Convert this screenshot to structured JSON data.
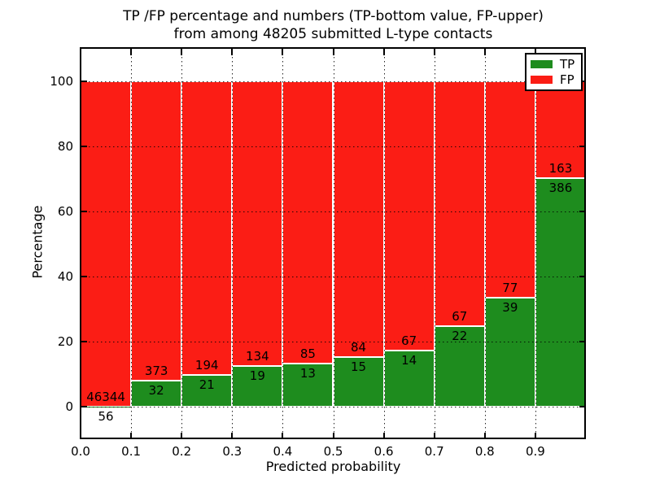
{
  "chart_data": {
    "type": "bar",
    "stacked": true,
    "title_line1": "TP /FP percentage and numbers (TP-bottom value, FP-upper)",
    "title_line2": "from among 48205 submitted L-type contacts",
    "xlabel": "Predicted probability",
    "ylabel": "Percentage",
    "total_contacts": 48205,
    "annotation_rule": "TP count printed at bottom of green segment, FP count printed above it",
    "categories": [
      "0.0-0.1",
      "0.1-0.2",
      "0.2-0.3",
      "0.3-0.4",
      "0.4-0.5",
      "0.5-0.6",
      "0.6-0.7",
      "0.7-0.8",
      "0.8-0.9",
      "0.9-1.0"
    ],
    "series": [
      {
        "name": "TP",
        "color": "#1e8c1e",
        "values": [
          56,
          32,
          21,
          19,
          13,
          15,
          14,
          22,
          39,
          386
        ]
      },
      {
        "name": "FP",
        "color": "#fb1d15",
        "values": [
          46344,
          373,
          194,
          134,
          85,
          84,
          67,
          67,
          77,
          163
        ]
      }
    ],
    "bars_normalized_to_percent": 100,
    "x_tick_labels": [
      "0.0",
      "0.1",
      "0.2",
      "0.3",
      "0.4",
      "0.5",
      "0.6",
      "0.7",
      "0.8",
      "0.9"
    ],
    "y_ticks": [
      0,
      20,
      40,
      60,
      80,
      100
    ],
    "xlim": [
      0.0,
      1.0
    ],
    "ylim": [
      -10,
      110
    ],
    "grid": "dotted",
    "grid_color": "#000000",
    "bar_edge_color": "#ffffff",
    "legend": {
      "position": "upper right",
      "entries": [
        {
          "label": "TP",
          "color": "#1e8c1e"
        },
        {
          "label": "FP",
          "color": "#fb1d15"
        }
      ]
    }
  }
}
